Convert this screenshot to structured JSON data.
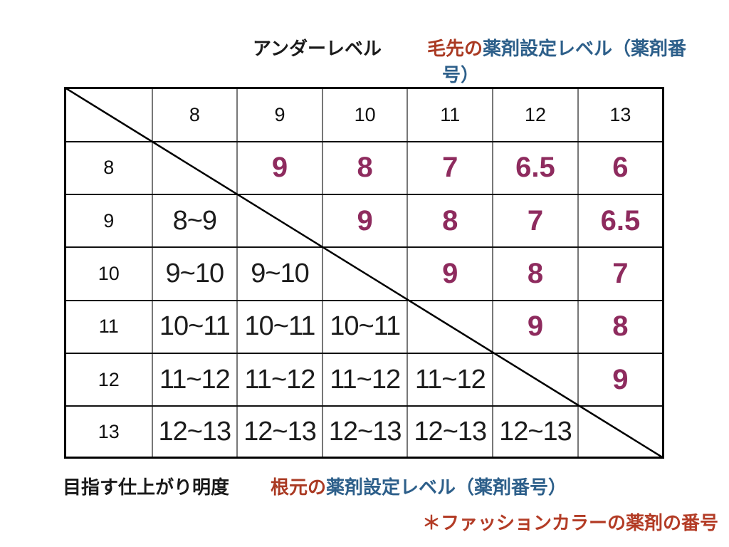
{
  "colors": {
    "accent_red": "#aa3a23",
    "accent_blue": "#2d5f8a",
    "result_purple": "#8e2b5e",
    "note_red": "#b33c26",
    "grid_outer": "#000000",
    "grid_inner_vertical": "#777777",
    "grid_inner_horizontal": "#111111"
  },
  "title": {
    "under_level_label": "アンダーレベル",
    "tip_red_segment": "毛先の",
    "tip_blue_line1": "薬剤設定レベル（薬剤番",
    "tip_blue_line2": "号）"
  },
  "footer": {
    "target_brightness_label": "目指す仕上がり明度",
    "root_red_segment": "根元の",
    "root_blue_segment": "薬剤設定レベル（薬剤番号）"
  },
  "note": {
    "text": "＊ファッションカラーの薬剤の番号"
  },
  "chart_data": {
    "type": "table",
    "title": "アンダーレベル × 毛先の薬剤設定レベル（薬剤番号）",
    "column_axis_label": "アンダーレベル",
    "upper_triangle_legend": "毛先の薬剤設定レベル（薬剤番号）",
    "row_axis_label": "目指す仕上がり明度",
    "lower_triangle_legend": "根元の薬剤設定レベル（薬剤番号）",
    "footnote": "＊ファッションカラーの薬剤の番号",
    "columns": [
      "8",
      "9",
      "10",
      "11",
      "12",
      "13"
    ],
    "rows": [
      {
        "label": "8",
        "cells": [
          {
            "text": "",
            "type": "empty"
          },
          {
            "text": "9",
            "type": "result"
          },
          {
            "text": "8",
            "type": "result"
          },
          {
            "text": "7",
            "type": "result"
          },
          {
            "text": "6.5",
            "type": "result"
          },
          {
            "text": "6",
            "type": "result"
          }
        ]
      },
      {
        "label": "9",
        "cells": [
          {
            "text": "8~9",
            "type": "range"
          },
          {
            "text": "",
            "type": "empty"
          },
          {
            "text": "9",
            "type": "result"
          },
          {
            "text": "8",
            "type": "result"
          },
          {
            "text": "7",
            "type": "result"
          },
          {
            "text": "6.5",
            "type": "result"
          }
        ]
      },
      {
        "label": "10",
        "cells": [
          {
            "text": "9~10",
            "type": "range"
          },
          {
            "text": "9~10",
            "type": "range"
          },
          {
            "text": "",
            "type": "empty"
          },
          {
            "text": "9",
            "type": "result"
          },
          {
            "text": "8",
            "type": "result"
          },
          {
            "text": "7",
            "type": "result"
          }
        ]
      },
      {
        "label": "11",
        "cells": [
          {
            "text": "10~11",
            "type": "range"
          },
          {
            "text": "10~11",
            "type": "range"
          },
          {
            "text": "10~11",
            "type": "range"
          },
          {
            "text": "",
            "type": "empty"
          },
          {
            "text": "9",
            "type": "result"
          },
          {
            "text": "8",
            "type": "result"
          }
        ]
      },
      {
        "label": "12",
        "cells": [
          {
            "text": "11~12",
            "type": "range"
          },
          {
            "text": "11~12",
            "type": "range"
          },
          {
            "text": "11~12",
            "type": "range"
          },
          {
            "text": "11~12",
            "type": "range"
          },
          {
            "text": "",
            "type": "empty"
          },
          {
            "text": "9",
            "type": "result"
          }
        ]
      },
      {
        "label": "13",
        "cells": [
          {
            "text": "12~13",
            "type": "range"
          },
          {
            "text": "12~13",
            "type": "range"
          },
          {
            "text": "12~13",
            "type": "range"
          },
          {
            "text": "12~13",
            "type": "range"
          },
          {
            "text": "12~13",
            "type": "range"
          },
          {
            "text": "",
            "type": "empty"
          }
        ]
      }
    ]
  }
}
